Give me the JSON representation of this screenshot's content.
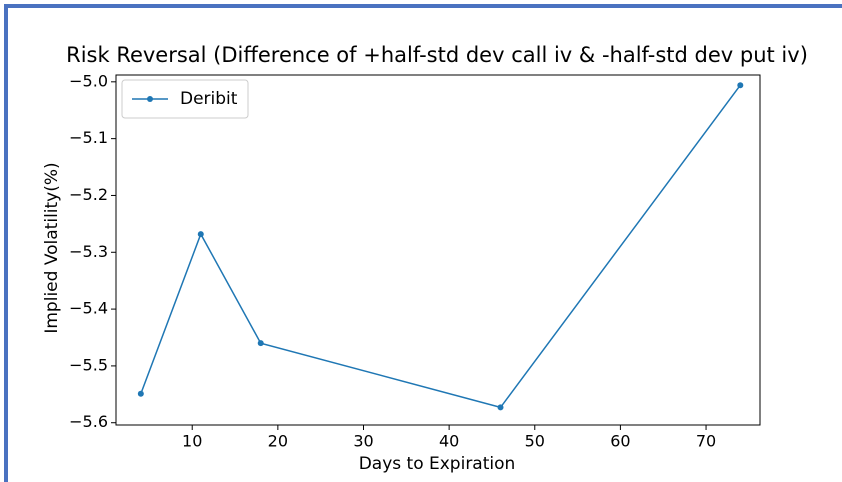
{
  "chart_data": {
    "type": "line",
    "title": "Risk Reversal (Difference of +half-std dev call iv & -half-std dev put iv)",
    "xlabel": "Days to Expiration",
    "ylabel": "Implied Volatility(%)",
    "x": [
      4,
      11,
      18,
      46,
      74
    ],
    "series": [
      {
        "name": "Deribit",
        "color": "#1f77b4",
        "values": [
          -5.549,
          -5.268,
          -5.46,
          -5.573,
          -5.006
        ]
      }
    ],
    "xlim": [
      1.1,
      76.3
    ],
    "ylim": [
      -5.604,
      -4.988
    ],
    "xticks": [
      10,
      20,
      30,
      40,
      50,
      60,
      70
    ],
    "yticks": [
      {
        "value": -5.6,
        "label": "−5.6"
      },
      {
        "value": -5.5,
        "label": "−5.5"
      },
      {
        "value": -5.4,
        "label": "−5.4"
      },
      {
        "value": -5.3,
        "label": "−5.3"
      },
      {
        "value": -5.2,
        "label": "−5.2"
      },
      {
        "value": -5.1,
        "label": "−5.1"
      },
      {
        "value": -5.0,
        "label": "−5.0"
      }
    ],
    "legend": "upper left"
  }
}
